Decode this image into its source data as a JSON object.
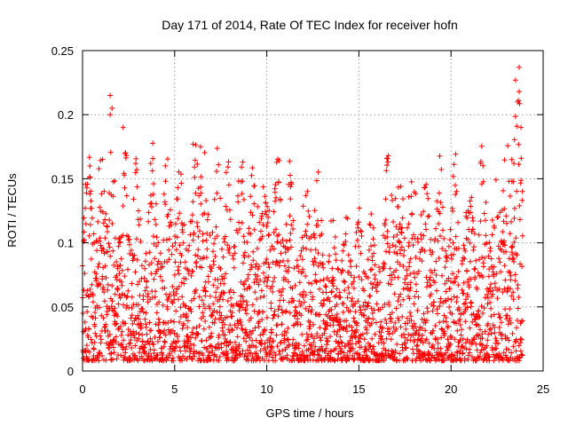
{
  "chart_data": {
    "type": "scatter",
    "title": "Day 171 of 2014, Rate Of TEC Index for receiver hofn",
    "xlabel": "GPS time / hours",
    "ylabel": "ROTI / TECUs",
    "xlim": [
      0,
      25
    ],
    "ylim": [
      0,
      0.25
    ],
    "xticks": [
      0,
      5,
      10,
      15,
      20,
      25
    ],
    "yticks": [
      0,
      0.05,
      0.1,
      0.15,
      0.2,
      0.25
    ],
    "xtick_labels": [
      "0",
      "5",
      "10",
      "15",
      "20",
      "25"
    ],
    "ytick_labels": [
      "0",
      "0.05",
      "0.1",
      "0.15",
      "0.2",
      "0.25"
    ],
    "grid": true,
    "legend": "none",
    "marker": "plus",
    "color": "#ff0000",
    "notable_points": [
      {
        "x": 1.5,
        "y": 0.215
      },
      {
        "x": 1.6,
        "y": 0.205
      },
      {
        "x": 1.5,
        "y": 0.2
      },
      {
        "x": 2.2,
        "y": 0.19
      },
      {
        "x": 0.4,
        "y": 0.16
      },
      {
        "x": 3.7,
        "y": 0.162
      },
      {
        "x": 6.0,
        "y": 0.177
      },
      {
        "x": 6.4,
        "y": 0.175
      },
      {
        "x": 8.7,
        "y": 0.163
      },
      {
        "x": 7.8,
        "y": 0.155
      },
      {
        "x": 16.6,
        "y": 0.168
      },
      {
        "x": 20.3,
        "y": 0.14
      },
      {
        "x": 23.7,
        "y": 0.237
      },
      {
        "x": 23.5,
        "y": 0.227
      },
      {
        "x": 23.7,
        "y": 0.218
      },
      {
        "x": 23.8,
        "y": 0.19
      },
      {
        "x": 23.3,
        "y": 0.165
      }
    ]
  }
}
